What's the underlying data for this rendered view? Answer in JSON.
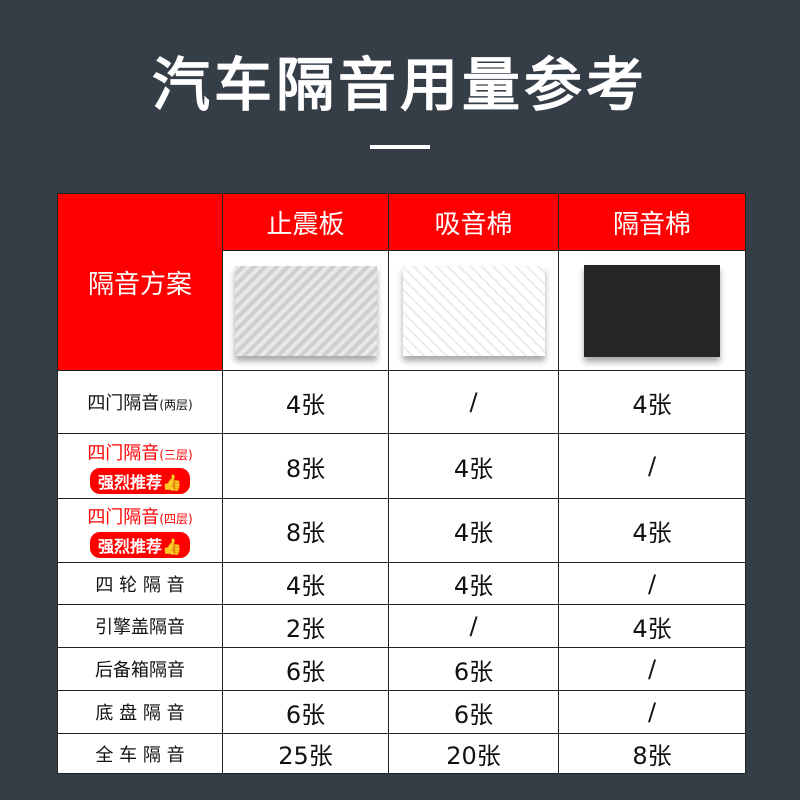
{
  "title": "汽车隔音用量参考",
  "header": {
    "plan": "隔音方案",
    "cols": [
      "止震板",
      "吸音棉",
      "隔音棉"
    ]
  },
  "badge": "强烈推荐👍",
  "rows": [
    {
      "name": "四门隔音",
      "sub": "(两层)",
      "highlight": false,
      "values": [
        "4张",
        "/",
        "4张"
      ]
    },
    {
      "name": "四门隔音",
      "sub": "(三层)",
      "highlight": true,
      "values": [
        "8张",
        "4张",
        "/"
      ]
    },
    {
      "name": "四门隔音",
      "sub": "(四层)",
      "highlight": true,
      "values": [
        "8张",
        "4张",
        "4张"
      ]
    },
    {
      "name": "四 轮 隔 音",
      "sub": "",
      "highlight": false,
      "values": [
        "4张",
        "4张",
        "/"
      ]
    },
    {
      "name": "引擎盖隔音",
      "sub": "",
      "highlight": false,
      "values": [
        "2张",
        "/",
        "4张"
      ]
    },
    {
      "name": "后备箱隔音",
      "sub": "",
      "highlight": false,
      "values": [
        "6张",
        "6张",
        "/"
      ]
    },
    {
      "name": "底 盘 隔 音",
      "sub": "",
      "highlight": false,
      "values": [
        "6张",
        "6张",
        "/"
      ]
    },
    {
      "name": "全 车 隔 音",
      "sub": "",
      "highlight": false,
      "values": [
        "25张",
        "20张",
        "8张"
      ]
    }
  ],
  "colors": {
    "accent": "#ff0000",
    "background": "#353d46"
  }
}
